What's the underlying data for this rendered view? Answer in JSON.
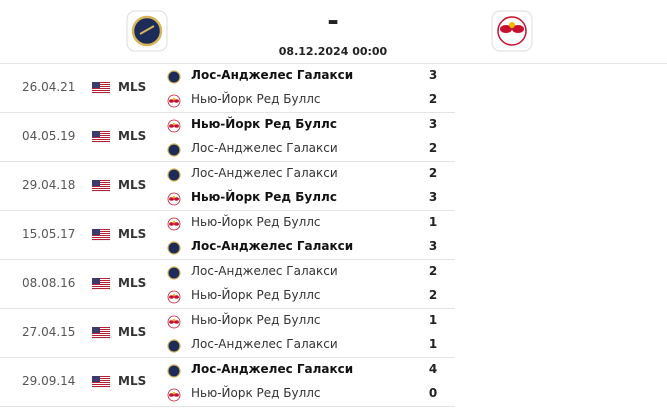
{
  "header": {
    "score": "-",
    "date": "08.12.2024 00:00"
  },
  "matches": [
    {
      "date": "26.04.21",
      "league": "MLS",
      "teams": [
        {
          "name": "Лос-Анджелес Галакси",
          "score": 3
        },
        {
          "name": "Нью-Йорк Ред Буллс",
          "score": 2
        }
      ]
    },
    {
      "date": "04.05.19",
      "league": "MLS",
      "teams": [
        {
          "name": "Нью-Йорк Ред Буллс",
          "score": 3
        },
        {
          "name": "Лос-Анджелес Галакси",
          "score": 2
        }
      ]
    },
    {
      "date": "29.04.18",
      "league": "MLS",
      "teams": [
        {
          "name": "Лос-Анджелес Галакси",
          "score": 2
        },
        {
          "name": "Нью-Йорк Ред Буллс",
          "score": 3
        }
      ]
    },
    {
      "date": "15.05.17",
      "league": "MLS",
      "teams": [
        {
          "name": "Нью-Йорк Ред Буллс",
          "score": 1
        },
        {
          "name": "Лос-Анджелес Галакси",
          "score": 3
        }
      ]
    },
    {
      "date": "08.08.16",
      "league": "MLS",
      "teams": [
        {
          "name": "Лос-Анджелес Галакси",
          "score": 2
        },
        {
          "name": "Нью-Йорк Ред Буллс",
          "score": 2
        }
      ]
    },
    {
      "date": "27.04.15",
      "league": "MLS",
      "teams": [
        {
          "name": "Нью-Йорк Ред Буллс",
          "score": 1
        },
        {
          "name": "Лос-Анджелес Галакси",
          "score": 1
        }
      ]
    },
    {
      "date": "29.09.14",
      "league": "MLS",
      "teams": [
        {
          "name": "Лос-Анджелес Галакси",
          "score": 4
        },
        {
          "name": "Нью-Йорк Ред Буллс",
          "score": 0
        }
      ]
    }
  ]
}
